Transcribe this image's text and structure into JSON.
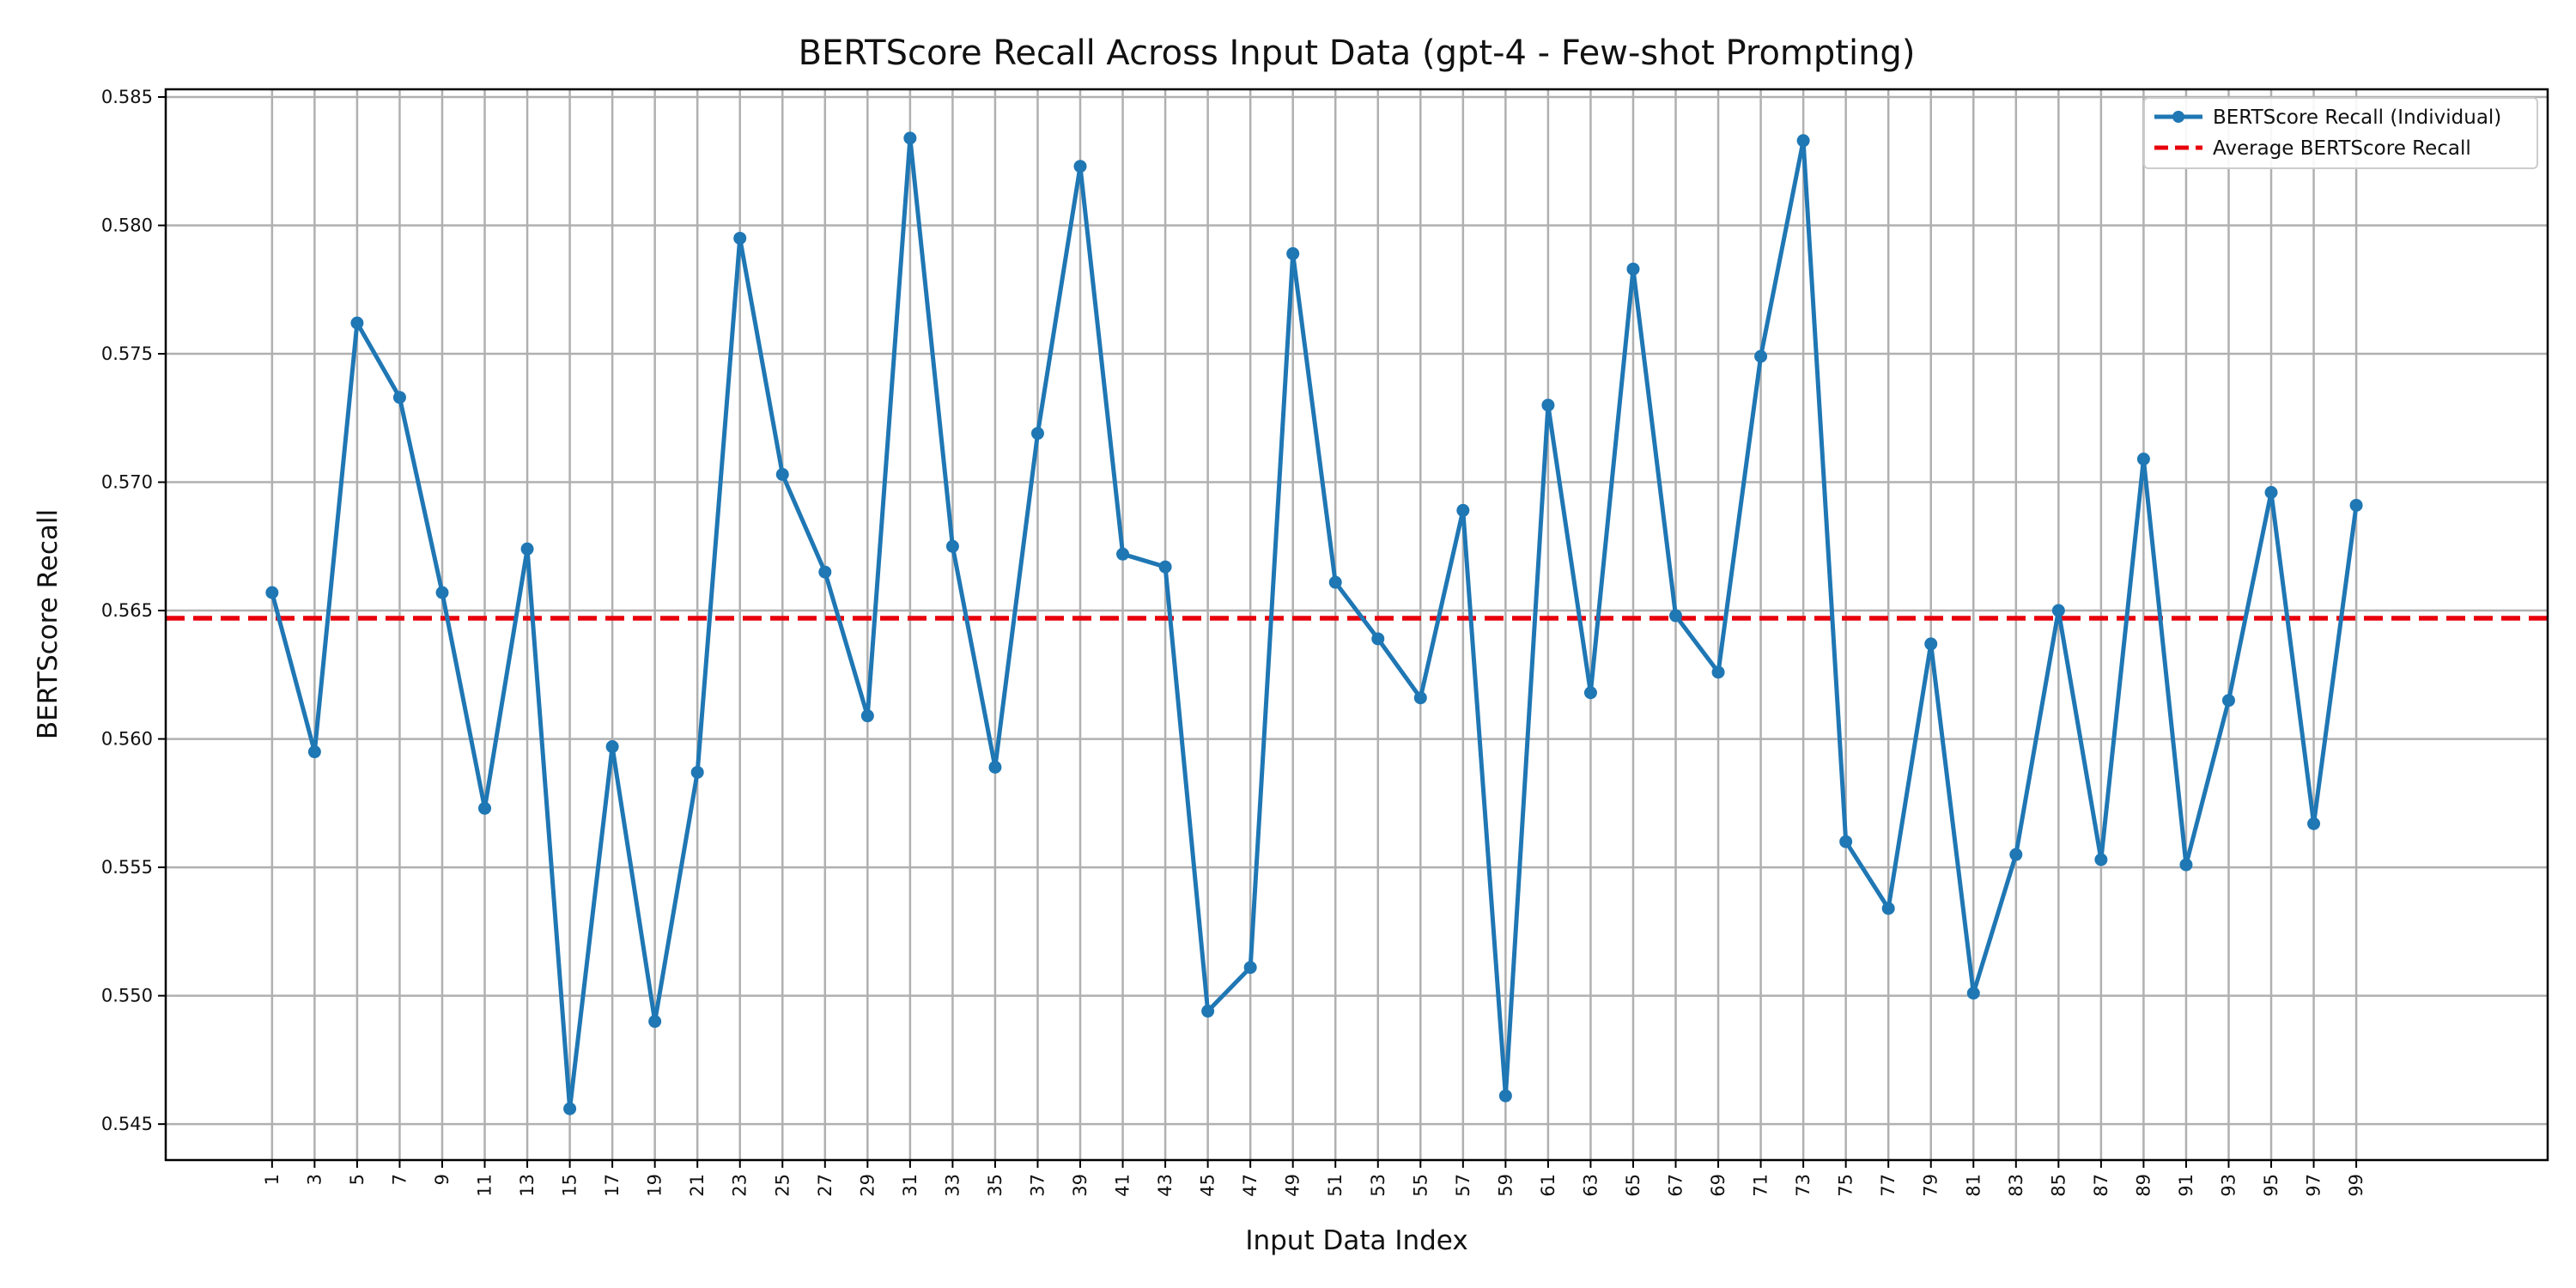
{
  "chart_data": {
    "type": "line",
    "title": "BERTScore Recall Across Input Data (gpt-4 - Few-shot Prompting)",
    "xlabel": "Input Data Index",
    "ylabel": "BERTScore Recall",
    "x": [
      1,
      3,
      5,
      7,
      9,
      11,
      13,
      15,
      17,
      19,
      21,
      23,
      25,
      27,
      29,
      31,
      33,
      35,
      37,
      39,
      41,
      43,
      45,
      47,
      49,
      51,
      53,
      55,
      57,
      59,
      61,
      63,
      65,
      67,
      69,
      71,
      73,
      75,
      77,
      79,
      81,
      83,
      85,
      87,
      89,
      91,
      93,
      95,
      97,
      99
    ],
    "xticks": [
      "1",
      "3",
      "5",
      "7",
      "9",
      "11",
      "13",
      "15",
      "17",
      "19",
      "21",
      "23",
      "25",
      "27",
      "29",
      "31",
      "33",
      "35",
      "37",
      "39",
      "41",
      "43",
      "45",
      "47",
      "49",
      "51",
      "53",
      "55",
      "57",
      "59",
      "61",
      "63",
      "65",
      "67",
      "69",
      "71",
      "73",
      "75",
      "77",
      "79",
      "81",
      "83",
      "85",
      "87",
      "89",
      "91",
      "93",
      "95",
      "97",
      "99"
    ],
    "xlim": [
      -4,
      108
    ],
    "ylim": [
      0.5436,
      0.5853
    ],
    "yticks": [
      "0.545",
      "0.550",
      "0.555",
      "0.560",
      "0.565",
      "0.570",
      "0.575",
      "0.580",
      "0.585"
    ],
    "grid": true,
    "legend": "top-right",
    "series": [
      {
        "name": "BERTScore Recall (Individual)",
        "color": "#1f77b4",
        "marker": "circle",
        "values": [
          0.5657,
          0.5595,
          0.5762,
          0.5733,
          0.5657,
          0.5573,
          0.5674,
          0.5456,
          0.5597,
          0.549,
          0.5587,
          0.5795,
          0.5703,
          0.5665,
          0.5609,
          0.5834,
          0.5675,
          0.5589,
          0.5719,
          0.5823,
          0.5672,
          0.5667,
          0.5494,
          0.5511,
          0.5789,
          0.5661,
          0.5639,
          0.5616,
          0.5689,
          0.5461,
          0.573,
          0.5618,
          0.5783,
          0.5648,
          0.5626,
          0.5749,
          0.5833,
          0.556,
          0.5534,
          0.5637,
          0.5501,
          0.5555,
          0.565,
          0.5553,
          0.5709,
          0.5551,
          0.5615,
          0.5696,
          0.5567,
          0.5691
        ]
      },
      {
        "name": "Average BERTScore Recall",
        "color": "#e8000b",
        "style": "dashed",
        "value": 0.5647
      }
    ]
  }
}
